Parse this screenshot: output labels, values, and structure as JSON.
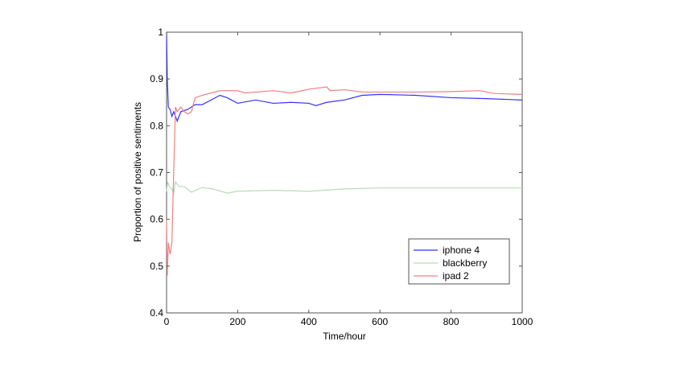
{
  "chart_data": {
    "type": "line",
    "title": "",
    "xlabel": "Time/hour",
    "ylabel": "Proportion of positive sentiments",
    "xlim": [
      0,
      1000
    ],
    "ylim": [
      0.4,
      1
    ],
    "xticks": [
      "0",
      "200",
      "400",
      "600",
      "800",
      "1000"
    ],
    "yticks": [
      "0.4",
      "0.5",
      "0.6",
      "0.7",
      "0.8",
      "0.9",
      "1"
    ],
    "grid": false,
    "legend_position": "bottom-right",
    "series": [
      {
        "name": "iphone 4",
        "color": "#3333ff",
        "x": [
          0,
          2,
          5,
          10,
          15,
          20,
          25,
          30,
          40,
          60,
          80,
          100,
          150,
          170,
          200,
          250,
          300,
          350,
          400,
          420,
          450,
          500,
          550,
          600,
          700,
          800,
          900,
          1000
        ],
        "y": [
          1.0,
          0.9,
          0.84,
          0.835,
          0.82,
          0.83,
          0.82,
          0.81,
          0.83,
          0.835,
          0.845,
          0.845,
          0.865,
          0.86,
          0.848,
          0.855,
          0.848,
          0.85,
          0.848,
          0.843,
          0.85,
          0.855,
          0.865,
          0.867,
          0.865,
          0.86,
          0.858,
          0.855
        ]
      },
      {
        "name": "blackberry",
        "color": "#b8dcb8",
        "x": [
          0,
          3,
          8,
          15,
          20,
          25,
          35,
          50,
          70,
          100,
          130,
          170,
          200,
          300,
          400,
          500,
          600,
          800,
          1000
        ],
        "y": [
          0.66,
          0.68,
          0.67,
          0.665,
          0.655,
          0.68,
          0.67,
          0.67,
          0.658,
          0.668,
          0.665,
          0.656,
          0.66,
          0.662,
          0.66,
          0.665,
          0.667,
          0.667,
          0.667
        ]
      },
      {
        "name": "ipad 2",
        "color": "#f08080",
        "x": [
          0,
          2,
          5,
          10,
          15,
          20,
          25,
          30,
          40,
          50,
          60,
          70,
          80,
          100,
          150,
          200,
          220,
          300,
          350,
          400,
          420,
          450,
          460,
          500,
          550,
          600,
          700,
          800,
          880,
          920,
          1000
        ],
        "y": [
          0.6,
          0.48,
          0.55,
          0.525,
          0.55,
          0.7,
          0.84,
          0.83,
          0.84,
          0.83,
          0.825,
          0.83,
          0.86,
          0.865,
          0.875,
          0.875,
          0.87,
          0.875,
          0.87,
          0.878,
          0.88,
          0.883,
          0.875,
          0.877,
          0.872,
          0.872,
          0.872,
          0.873,
          0.875,
          0.869,
          0.867
        ]
      }
    ]
  }
}
